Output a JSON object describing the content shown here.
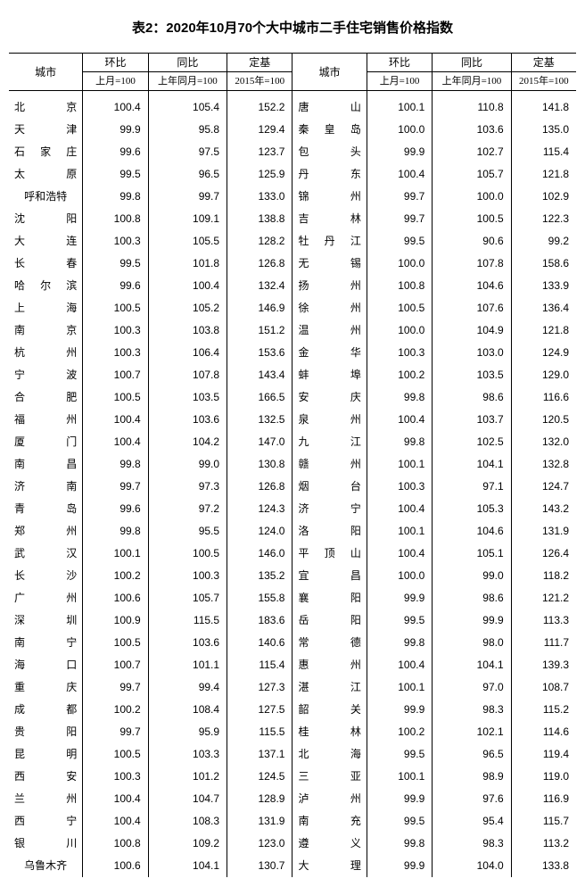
{
  "title": "表2：2020年10月70个大中城市二手住宅销售价格指数",
  "headers": {
    "city": "城市",
    "mom": "环比",
    "yoy": "同比",
    "base": "定基",
    "mom_sub": "上月=100",
    "yoy_sub": "上年同月=100",
    "base_sub": "2015年=100"
  },
  "colors": {
    "background": "#ffffff",
    "text": "#000000",
    "border": "#000000"
  },
  "font": {
    "title_size_pt": 15,
    "body_size_pt": 12,
    "title_family": "SimHei",
    "body_family": "SimSun",
    "number_family": "Arial"
  },
  "left": [
    {
      "city": "北　　京",
      "mom": "100.4",
      "yoy": "105.4",
      "base": "152.2"
    },
    {
      "city": "天　　津",
      "mom": "99.9",
      "yoy": "95.8",
      "base": "129.4"
    },
    {
      "city": "石 家 庄",
      "mom": "99.6",
      "yoy": "97.5",
      "base": "123.7"
    },
    {
      "city": "太　　原",
      "mom": "99.5",
      "yoy": "96.5",
      "base": "125.9"
    },
    {
      "city": "呼和浩特",
      "mom": "99.8",
      "yoy": "99.7",
      "base": "133.0"
    },
    {
      "city": "沈　　阳",
      "mom": "100.8",
      "yoy": "109.1",
      "base": "138.8"
    },
    {
      "city": "大　　连",
      "mom": "100.3",
      "yoy": "105.5",
      "base": "128.2"
    },
    {
      "city": "长　　春",
      "mom": "99.5",
      "yoy": "101.8",
      "base": "126.8"
    },
    {
      "city": "哈 尔 滨",
      "mom": "99.6",
      "yoy": "100.4",
      "base": "132.4"
    },
    {
      "city": "上　　海",
      "mom": "100.5",
      "yoy": "105.2",
      "base": "146.9"
    },
    {
      "city": "南　　京",
      "mom": "100.3",
      "yoy": "103.8",
      "base": "151.2"
    },
    {
      "city": "杭　　州",
      "mom": "100.3",
      "yoy": "106.4",
      "base": "153.6"
    },
    {
      "city": "宁　　波",
      "mom": "100.7",
      "yoy": "107.8",
      "base": "143.4"
    },
    {
      "city": "合　　肥",
      "mom": "100.5",
      "yoy": "103.5",
      "base": "166.5"
    },
    {
      "city": "福　　州",
      "mom": "100.4",
      "yoy": "103.6",
      "base": "132.5"
    },
    {
      "city": "厦　　门",
      "mom": "100.4",
      "yoy": "104.2",
      "base": "147.0"
    },
    {
      "city": "南　　昌",
      "mom": "99.8",
      "yoy": "99.0",
      "base": "130.8"
    },
    {
      "city": "济　　南",
      "mom": "99.7",
      "yoy": "97.3",
      "base": "126.8"
    },
    {
      "city": "青　　岛",
      "mom": "99.6",
      "yoy": "97.2",
      "base": "124.3"
    },
    {
      "city": "郑　　州",
      "mom": "99.8",
      "yoy": "95.5",
      "base": "124.0"
    },
    {
      "city": "武　　汉",
      "mom": "100.1",
      "yoy": "100.5",
      "base": "146.0"
    },
    {
      "city": "长　　沙",
      "mom": "100.2",
      "yoy": "100.3",
      "base": "135.2"
    },
    {
      "city": "广　　州",
      "mom": "100.6",
      "yoy": "105.7",
      "base": "155.8"
    },
    {
      "city": "深　　圳",
      "mom": "100.9",
      "yoy": "115.5",
      "base": "183.6"
    },
    {
      "city": "南　　宁",
      "mom": "100.5",
      "yoy": "103.6",
      "base": "140.6"
    },
    {
      "city": "海　　口",
      "mom": "100.7",
      "yoy": "101.1",
      "base": "115.4"
    },
    {
      "city": "重　　庆",
      "mom": "99.7",
      "yoy": "99.4",
      "base": "127.3"
    },
    {
      "city": "成　　都",
      "mom": "100.2",
      "yoy": "108.4",
      "base": "127.5"
    },
    {
      "city": "贵　　阳",
      "mom": "99.7",
      "yoy": "95.9",
      "base": "115.5"
    },
    {
      "city": "昆　　明",
      "mom": "100.5",
      "yoy": "103.3",
      "base": "137.1"
    },
    {
      "city": "西　　安",
      "mom": "100.3",
      "yoy": "101.2",
      "base": "124.5"
    },
    {
      "city": "兰　　州",
      "mom": "100.4",
      "yoy": "104.7",
      "base": "128.9"
    },
    {
      "city": "西　　宁",
      "mom": "100.4",
      "yoy": "108.3",
      "base": "131.9"
    },
    {
      "city": "银　　川",
      "mom": "100.8",
      "yoy": "109.2",
      "base": "123.0"
    },
    {
      "city": "乌鲁木齐",
      "mom": "100.6",
      "yoy": "104.1",
      "base": "130.7"
    }
  ],
  "right": [
    {
      "city": "唐　　山",
      "mom": "100.1",
      "yoy": "110.8",
      "base": "141.8"
    },
    {
      "city": "秦 皇 岛",
      "mom": "100.0",
      "yoy": "103.6",
      "base": "135.0"
    },
    {
      "city": "包　　头",
      "mom": "99.9",
      "yoy": "102.7",
      "base": "115.4"
    },
    {
      "city": "丹　　东",
      "mom": "100.4",
      "yoy": "105.7",
      "base": "121.8"
    },
    {
      "city": "锦　　州",
      "mom": "99.7",
      "yoy": "100.0",
      "base": "102.9"
    },
    {
      "city": "吉　　林",
      "mom": "99.7",
      "yoy": "100.5",
      "base": "122.3"
    },
    {
      "city": "牡 丹 江",
      "mom": "99.5",
      "yoy": "90.6",
      "base": "99.2"
    },
    {
      "city": "无　　锡",
      "mom": "100.0",
      "yoy": "107.8",
      "base": "158.6"
    },
    {
      "city": "扬　　州",
      "mom": "100.8",
      "yoy": "104.6",
      "base": "133.9"
    },
    {
      "city": "徐　　州",
      "mom": "100.5",
      "yoy": "107.6",
      "base": "136.4"
    },
    {
      "city": "温　　州",
      "mom": "100.0",
      "yoy": "104.9",
      "base": "121.8"
    },
    {
      "city": "金　　华",
      "mom": "100.3",
      "yoy": "103.0",
      "base": "124.9"
    },
    {
      "city": "蚌　　埠",
      "mom": "100.2",
      "yoy": "103.5",
      "base": "129.0"
    },
    {
      "city": "安　　庆",
      "mom": "99.8",
      "yoy": "98.6",
      "base": "116.6"
    },
    {
      "city": "泉　　州",
      "mom": "100.4",
      "yoy": "103.7",
      "base": "120.5"
    },
    {
      "city": "九　　江",
      "mom": "99.8",
      "yoy": "102.5",
      "base": "132.0"
    },
    {
      "city": "赣　　州",
      "mom": "100.1",
      "yoy": "104.1",
      "base": "132.8"
    },
    {
      "city": "烟　　台",
      "mom": "100.3",
      "yoy": "97.1",
      "base": "124.7"
    },
    {
      "city": "济　　宁",
      "mom": "100.4",
      "yoy": "105.3",
      "base": "143.2"
    },
    {
      "city": "洛　　阳",
      "mom": "100.1",
      "yoy": "104.6",
      "base": "131.9"
    },
    {
      "city": "平 顶 山",
      "mom": "100.4",
      "yoy": "105.1",
      "base": "126.4"
    },
    {
      "city": "宜　　昌",
      "mom": "100.0",
      "yoy": "99.0",
      "base": "118.2"
    },
    {
      "city": "襄　　阳",
      "mom": "99.9",
      "yoy": "98.6",
      "base": "121.2"
    },
    {
      "city": "岳　　阳",
      "mom": "99.5",
      "yoy": "99.9",
      "base": "113.3"
    },
    {
      "city": "常　　德",
      "mom": "99.8",
      "yoy": "98.0",
      "base": "111.7"
    },
    {
      "city": "惠　　州",
      "mom": "100.4",
      "yoy": "104.1",
      "base": "139.3"
    },
    {
      "city": "湛　　江",
      "mom": "100.1",
      "yoy": "97.0",
      "base": "108.7"
    },
    {
      "city": "韶　　关",
      "mom": "99.9",
      "yoy": "98.3",
      "base": "115.2"
    },
    {
      "city": "桂　　林",
      "mom": "100.2",
      "yoy": "102.1",
      "base": "114.6"
    },
    {
      "city": "北　　海",
      "mom": "99.5",
      "yoy": "96.5",
      "base": "119.4"
    },
    {
      "city": "三　　亚",
      "mom": "100.1",
      "yoy": "98.9",
      "base": "119.0"
    },
    {
      "city": "泸　　州",
      "mom": "99.9",
      "yoy": "97.6",
      "base": "116.9"
    },
    {
      "city": "南　　充",
      "mom": "99.5",
      "yoy": "95.4",
      "base": "115.7"
    },
    {
      "city": "遵　　义",
      "mom": "99.8",
      "yoy": "98.3",
      "base": "113.2"
    },
    {
      "city": "大　　理",
      "mom": "99.9",
      "yoy": "104.0",
      "base": "133.8"
    }
  ]
}
